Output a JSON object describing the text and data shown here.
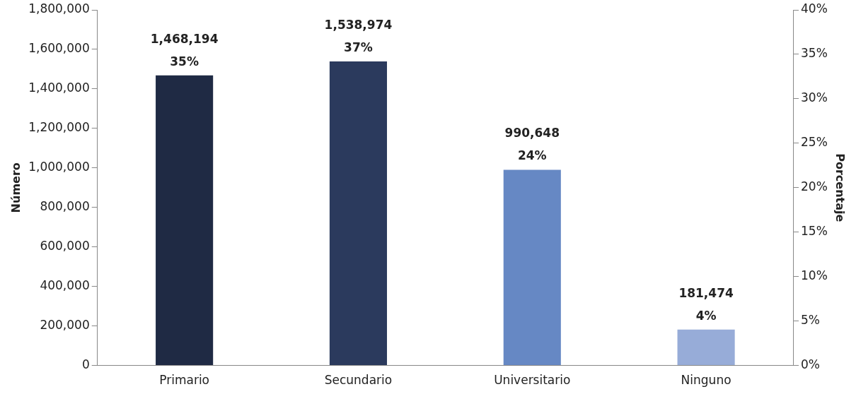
{
  "chart_data": {
    "type": "bar",
    "categories": [
      "Primario",
      "Secundario",
      "Universitario",
      "Ninguno"
    ],
    "values": [
      1468194,
      1538974,
      990648,
      181474
    ],
    "colors": [
      "#1f2a44",
      "#2b3a5d",
      "#6688c4",
      "#97acd8"
    ],
    "value_labels": [
      "1,468,194\n35%",
      "1,538,974\n37%",
      "990,648\n24%",
      "181,474\n4%"
    ],
    "ylabel": "Número",
    "y2label": "Porcentaje",
    "ylim": [
      0,
      1800000
    ],
    "yticks": [
      {
        "value": 0,
        "label": "0"
      },
      {
        "value": 200000,
        "label": "200,000"
      },
      {
        "value": 400000,
        "label": "400,000"
      },
      {
        "value": 600000,
        "label": "600,000"
      },
      {
        "value": 800000,
        "label": "800,000"
      },
      {
        "value": 1000000,
        "label": "1,000,000"
      },
      {
        "value": 1200000,
        "label": "1,200,000"
      },
      {
        "value": 1400000,
        "label": "1,400,000"
      },
      {
        "value": 1600000,
        "label": "1,600,000"
      },
      {
        "value": 1800000,
        "label": "1,800,000"
      }
    ],
    "y2lim": [
      0,
      40
    ],
    "y2ticks": [
      {
        "value": 0,
        "label": "0%"
      },
      {
        "value": 5,
        "label": "5%"
      },
      {
        "value": 10,
        "label": "10%"
      },
      {
        "value": 15,
        "label": "15%"
      },
      {
        "value": 20,
        "label": "20%"
      },
      {
        "value": 25,
        "label": "25%"
      },
      {
        "value": 30,
        "label": "30%"
      },
      {
        "value": 35,
        "label": "35%"
      },
      {
        "value": 40,
        "label": "40%"
      }
    ],
    "grid": false,
    "legend": false
  }
}
